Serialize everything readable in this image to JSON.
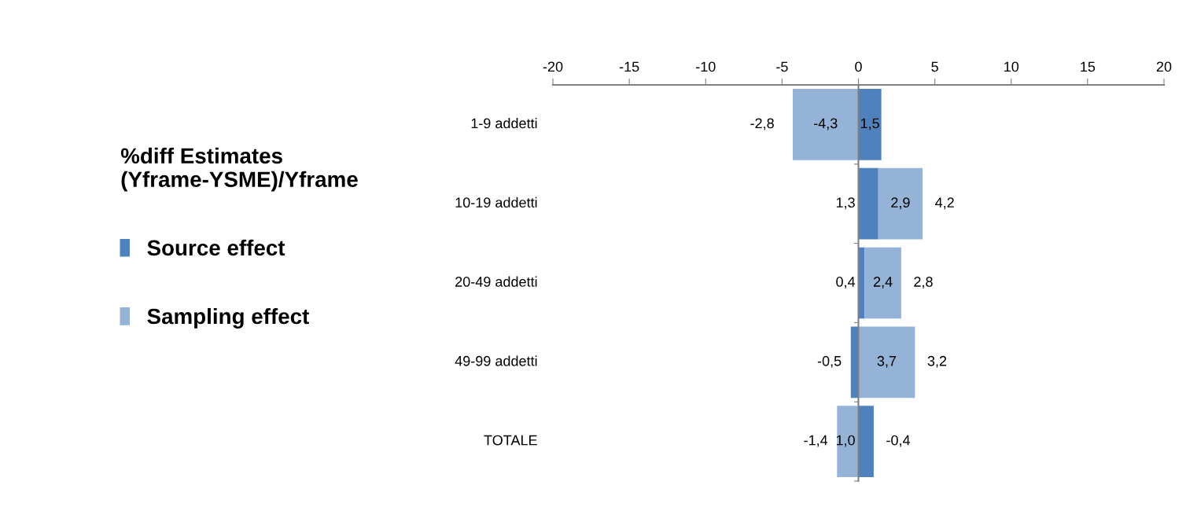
{
  "chart_data": {
    "type": "bar",
    "orientation": "horizontal",
    "stacked": true,
    "legend_title": "%diff Estimates\n(Yframe-YSME)/Yframe",
    "categories": [
      "1-9 addetti",
      "10-19 addetti",
      "20-49 addetti",
      "49-99 addetti",
      "TOTALE"
    ],
    "series": [
      {
        "name": "Source effect",
        "color": "#4f81bd",
        "values": [
          1.5,
          1.3,
          0.4,
          -0.5,
          1.0
        ],
        "value_labels": [
          "1,5",
          "1,3",
          "0,4",
          "-0,5",
          "1,0"
        ]
      },
      {
        "name": "Sampling effect",
        "color": "#95b3d7",
        "values": [
          -4.3,
          2.9,
          2.4,
          3.7,
          -1.4
        ],
        "value_labels": [
          "-4,3",
          "2,9",
          "2,4",
          "3,7",
          "-1,4"
        ]
      }
    ],
    "totals": [
      "-2,8",
      "4,2",
      "2,8",
      "3,2",
      "-0,4"
    ],
    "xlim": [
      -20,
      20
    ],
    "xticks": [
      -20,
      -15,
      -10,
      -5,
      0,
      5,
      10,
      15,
      20
    ],
    "legend": "left"
  }
}
